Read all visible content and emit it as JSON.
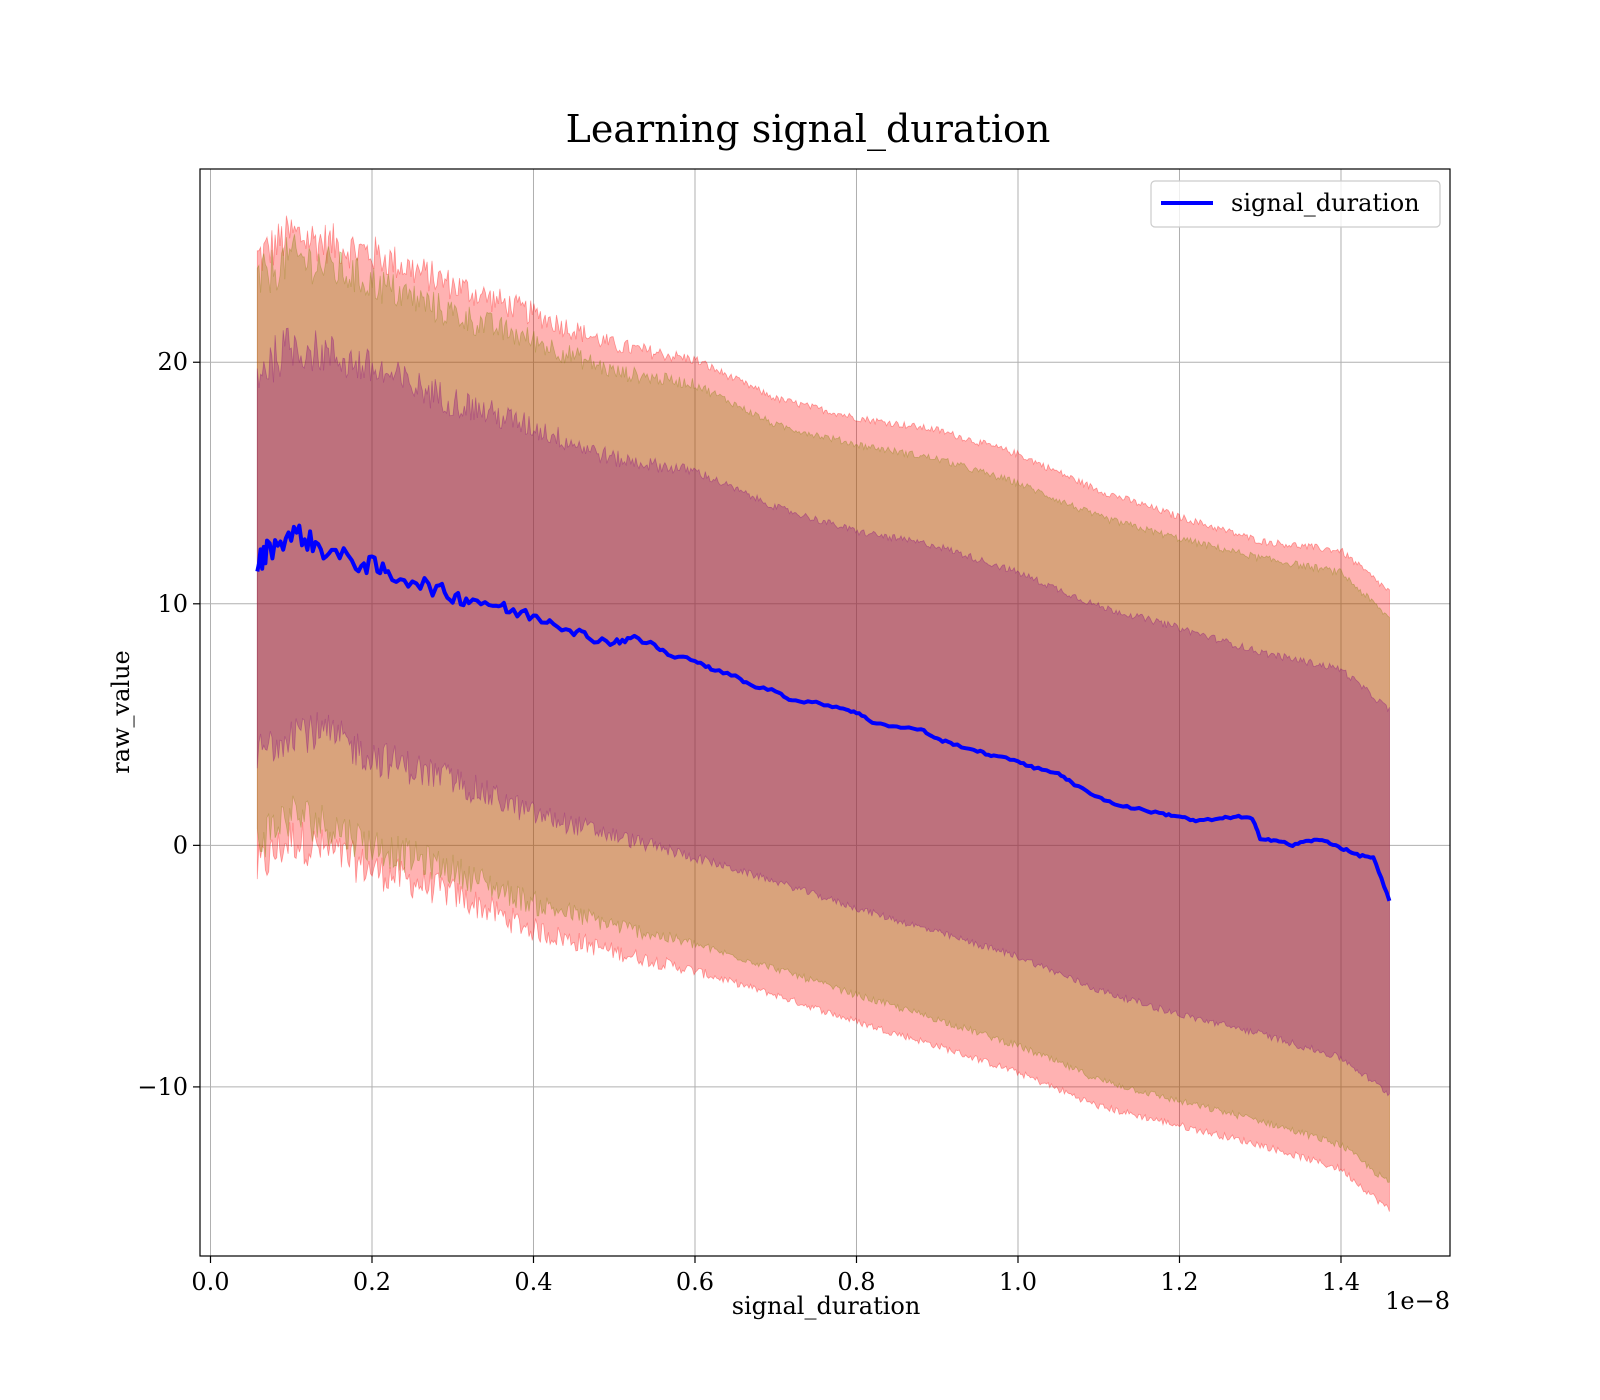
{
  "chart_data": {
    "type": "line",
    "title": "Learning signal_duration",
    "xlabel": "signal_duration",
    "ylabel": "raw_value",
    "x_offset_label": "1e−8",
    "xlim": [
      -0.013,
      1.535
    ],
    "ylim": [
      -17,
      28
    ],
    "grid": true,
    "legend_position": "upper right",
    "x_ticks": [
      0.0,
      0.2,
      0.4,
      0.6,
      0.8,
      1.0,
      1.2,
      1.4
    ],
    "x_tick_labels": [
      "0.0",
      "0.2",
      "0.4",
      "0.6",
      "0.8",
      "1.0",
      "1.2",
      "1.4"
    ],
    "y_ticks": [
      -10,
      0,
      10,
      20
    ],
    "y_tick_labels": [
      "−10",
      "0",
      "10",
      "20"
    ],
    "series": [
      {
        "name": "signal_duration",
        "color": "#0000ff",
        "x": [
          0.058,
          0.07,
          0.09,
          0.11,
          0.13,
          0.15,
          0.18,
          0.2,
          0.22,
          0.25,
          0.28,
          0.3,
          0.32,
          0.35,
          0.37,
          0.4,
          0.42,
          0.45,
          0.47,
          0.5,
          0.52,
          0.55,
          0.57,
          0.6,
          0.62,
          0.65,
          0.67,
          0.7,
          0.72,
          0.75,
          0.78,
          0.8,
          0.82,
          0.85,
          0.88,
          0.9,
          0.92,
          0.95,
          0.97,
          1.0,
          1.02,
          1.05,
          1.07,
          1.1,
          1.12,
          1.15,
          1.18,
          1.2,
          1.22,
          1.25,
          1.27,
          1.29,
          1.3,
          1.32,
          1.34,
          1.36,
          1.38,
          1.4,
          1.42,
          1.44,
          1.46
        ],
        "y": [
          11.6,
          12.2,
          12.7,
          12.9,
          12.4,
          12.1,
          11.7,
          11.6,
          11.2,
          11.0,
          10.6,
          10.3,
          10.2,
          10.0,
          9.7,
          9.5,
          9.3,
          8.9,
          8.6,
          8.4,
          8.6,
          8.3,
          7.8,
          7.7,
          7.3,
          7.0,
          6.6,
          6.4,
          6.0,
          5.9,
          5.7,
          5.5,
          5.1,
          4.9,
          4.8,
          4.4,
          4.2,
          3.9,
          3.7,
          3.5,
          3.2,
          3.0,
          2.5,
          2.0,
          1.7,
          1.5,
          1.3,
          1.2,
          1.0,
          1.1,
          1.2,
          1.1,
          0.3,
          0.2,
          0.0,
          0.2,
          0.2,
          -0.1,
          -0.4,
          -0.5,
          -2.3
        ]
      }
    ],
    "bands": [
      {
        "role": "outer",
        "color": "#ff0000",
        "opacity": 0.3,
        "x": [
          0.058,
          0.1,
          0.15,
          0.2,
          0.3,
          0.4,
          0.5,
          0.6,
          0.7,
          0.8,
          0.9,
          1.0,
          1.1,
          1.2,
          1.3,
          1.4,
          1.46
        ],
        "upper": [
          24.3,
          25.3,
          24.9,
          24.5,
          23.2,
          22.0,
          20.7,
          20.1,
          18.5,
          17.7,
          17.2,
          16.2,
          14.7,
          13.6,
          12.6,
          12.2,
          10.5
        ],
        "lower": [
          -1.0,
          0.3,
          -0.3,
          -1.0,
          -2.0,
          -3.5,
          -4.4,
          -5.2,
          -6.2,
          -7.3,
          -8.3,
          -9.4,
          -10.8,
          -11.6,
          -12.4,
          -13.4,
          -15.1
        ]
      },
      {
        "role": "middle",
        "color": "#808000",
        "opacity": 0.3,
        "x": [
          0.058,
          0.1,
          0.15,
          0.2,
          0.3,
          0.4,
          0.5,
          0.6,
          0.7,
          0.8,
          0.9,
          1.0,
          1.1,
          1.2,
          1.3,
          1.4,
          1.46
        ],
        "upper": [
          23.3,
          24.4,
          23.9,
          23.3,
          22.0,
          20.9,
          19.6,
          19.1,
          17.4,
          16.6,
          16.0,
          15.0,
          13.6,
          12.7,
          11.9,
          11.3,
          9.4
        ],
        "lower": [
          0.2,
          1.3,
          0.8,
          0.0,
          -1.0,
          -2.4,
          -3.3,
          -4.1,
          -5.1,
          -6.2,
          -7.2,
          -8.3,
          -9.7,
          -10.6,
          -11.4,
          -12.4,
          -14.0
        ]
      },
      {
        "role": "inner",
        "color": "#800080",
        "opacity": 0.3,
        "x": [
          0.058,
          0.1,
          0.15,
          0.2,
          0.3,
          0.4,
          0.5,
          0.6,
          0.7,
          0.8,
          0.9,
          1.0,
          1.1,
          1.2,
          1.3,
          1.4,
          1.46
        ],
        "upper": [
          19.6,
          20.7,
          20.3,
          19.7,
          18.4,
          17.3,
          16.0,
          15.5,
          14.0,
          13.0,
          12.4,
          11.3,
          9.9,
          9.0,
          8.0,
          7.3,
          5.6
        ],
        "lower": [
          3.7,
          4.9,
          4.5,
          3.7,
          2.7,
          1.3,
          0.4,
          -0.5,
          -1.5,
          -2.6,
          -3.6,
          -4.6,
          -6.0,
          -7.0,
          -7.8,
          -8.8,
          -10.3
        ]
      }
    ],
    "legend": [
      {
        "label": "signal_duration",
        "color": "#0000ff"
      }
    ]
  }
}
